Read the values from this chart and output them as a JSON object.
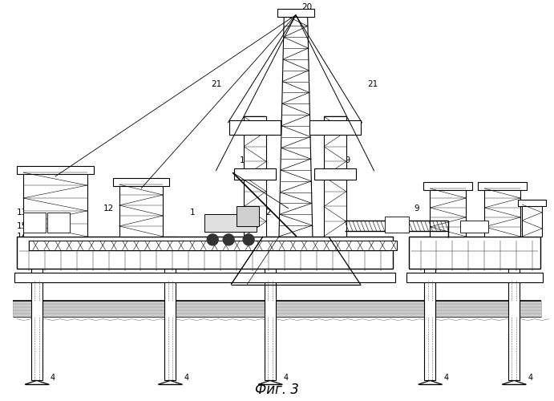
{
  "title": "Фиг. 3",
  "title_fontsize": 12,
  "bg_color": "#ffffff",
  "line_color": "#000000",
  "fig_width": 6.91,
  "fig_height": 5.0,
  "dpi": 100
}
